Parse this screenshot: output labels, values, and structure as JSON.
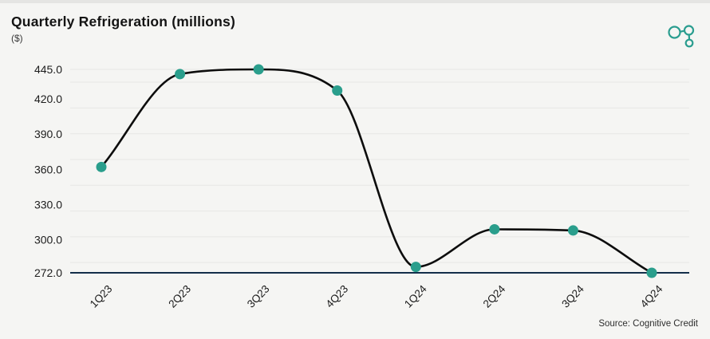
{
  "header": {
    "logo_icon": "cognitive-credit-logo"
  },
  "footer": {},
  "colors": {
    "background": "#f5f5f3",
    "top_strip": "#e5e5e3",
    "accent": "#2a9d8f",
    "marker": "#2a9e8c",
    "series_line": "#0d0d0d",
    "axis_line": "#132e4a",
    "gridline": "#e7e7e5",
    "text": "#1d1d1d"
  },
  "chart_data": {
    "type": "line",
    "title": "Quarterly Refrigeration (millions)",
    "subtitle": "($)",
    "source": "Source: Cognitive Credit",
    "categories": [
      "1Q23",
      "2Q23",
      "3Q23",
      "4Q23",
      "1Q24",
      "2Q24",
      "3Q24",
      "4Q24"
    ],
    "series": [
      {
        "name": "Quarterly Refrigeration (millions)",
        "values": [
          362.0,
          441.0,
          445.0,
          427.0,
          277.0,
          309.0,
          308.0,
          272.0
        ]
      }
    ],
    "y_ticks": [
      445.0,
      420.0,
      390.0,
      360.0,
      330.0,
      300.0,
      272.0
    ],
    "y_tick_decimals": 1,
    "ylim": [
      272.0,
      445.0
    ],
    "xlabel": "",
    "ylabel": "($)",
    "grid": true,
    "legend": false,
    "line_shape": "spline",
    "marker": "circle",
    "x_tick_rotation": -46
  }
}
